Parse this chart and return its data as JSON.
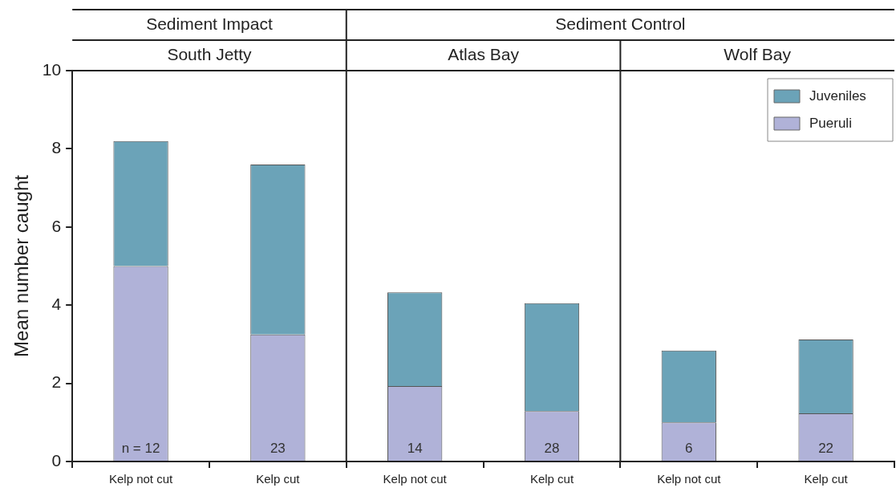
{
  "chart_data": {
    "type": "bar",
    "ylabel": "Mean number caught",
    "categories": [
      "Kelp not cut",
      "Kelp cut",
      "Kelp not cut",
      "Kelp cut",
      "Kelp not cut",
      "Kelp cut"
    ],
    "series": [
      {
        "name": "Pueruli",
        "color": "#b0b2d8",
        "values": [
          5.0,
          3.25,
          1.93,
          1.29,
          1.0,
          1.23
        ]
      },
      {
        "name": "Juveniles",
        "color": "#6ba3b8",
        "values": [
          3.2,
          4.35,
          2.4,
          2.76,
          1.84,
          1.89
        ]
      }
    ],
    "stacked": true,
    "ylim": [
      0,
      10
    ],
    "yticks": [
      0,
      2,
      4,
      6,
      8,
      10
    ],
    "grid": false,
    "legend": "top right",
    "annotations": [
      "Sediment Impact",
      "Sediment Control",
      "South Jetty",
      "Atlas Bay",
      "Wolf Bay",
      "n = 12",
      "23",
      "14",
      "28",
      "6",
      "22"
    ]
  }
}
